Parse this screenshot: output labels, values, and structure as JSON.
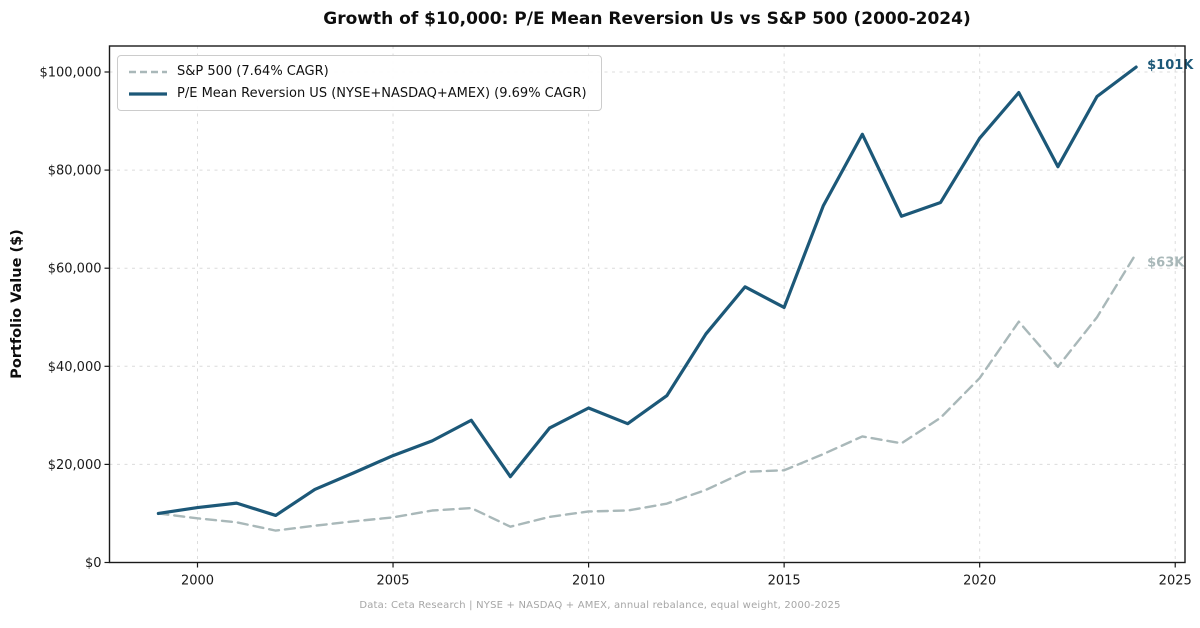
{
  "header": {
    "title": "Growth of $10,000: P/E Mean Reversion Us vs S&P 500 (2000-2024)"
  },
  "y_axis_label": "Portfolio Value ($)",
  "footer": {
    "caption": "Data: Ceta Research | NYSE + NASDAQ + AMEX, annual rebalance, equal weight, 2000-2025"
  },
  "legend": {
    "position": "upper-left",
    "items": [
      {
        "label": "S&P 500 (7.64% CAGR)",
        "series": "sp500",
        "style": "dashed"
      },
      {
        "label": "P/E Mean Reversion US (NYSE+NASDAQ+AMEX) (9.69% CAGR)",
        "series": "strategy",
        "style": "solid"
      }
    ]
  },
  "colors": {
    "strategy": "#1c5878",
    "sp500": "#a9b8b9",
    "grid": "#dcdcdc",
    "spine": "#1a1a1a",
    "tick_text": "#1a1a1a",
    "footer_text": "#a6a6a6"
  },
  "chart_data": {
    "type": "line",
    "title": "Growth of $10,000: P/E Mean Reversion Us vs S&P 500 (2000-2024)",
    "xlabel": "",
    "ylabel": "Portfolio Value ($)",
    "grid": true,
    "legend_position": "upper-left",
    "x": [
      1999,
      2000,
      2001,
      2002,
      2003,
      2004,
      2005,
      2006,
      2007,
      2008,
      2009,
      2010,
      2011,
      2012,
      2013,
      2014,
      2015,
      2016,
      2017,
      2018,
      2019,
      2020,
      2021,
      2022,
      2023,
      2024
    ],
    "series": [
      {
        "name": "S&P 500 (7.64% CAGR)",
        "style": "dashed",
        "color_key": "sp500",
        "end_label": "$63K",
        "values_usd_thousands": [
          10.0,
          9.0,
          8.2,
          6.5,
          7.5,
          8.4,
          9.2,
          10.6,
          11.1,
          7.3,
          9.3,
          10.4,
          10.6,
          12.0,
          14.8,
          18.5,
          18.8,
          22.1,
          25.7,
          24.3,
          29.5,
          37.6,
          49.1,
          39.9,
          50.0,
          63.0
        ]
      },
      {
        "name": "P/E Mean Reversion US (NYSE+NASDAQ+AMEX) (9.69% CAGR)",
        "style": "solid",
        "color_key": "strategy",
        "end_label": "$101K",
        "values_usd_thousands": [
          10.0,
          11.2,
          12.1,
          9.6,
          14.9,
          18.3,
          21.8,
          24.8,
          29.0,
          17.5,
          27.4,
          31.5,
          28.3,
          34.0,
          46.6,
          56.2,
          52.0,
          72.7,
          87.3,
          70.6,
          73.4,
          86.5,
          95.8,
          80.7,
          95.0,
          101.0
        ]
      }
    ],
    "x_ticks": [
      2000,
      2005,
      2010,
      2015,
      2020,
      2025
    ],
    "y_ticks": [
      {
        "value": 0,
        "label": "$0"
      },
      {
        "value": 20,
        "label": "$20,000"
      },
      {
        "value": 40,
        "label": "$40,000"
      },
      {
        "value": 60,
        "label": "$60,000"
      },
      {
        "value": 80,
        "label": "$80,000"
      },
      {
        "value": 100,
        "label": "$100,000"
      }
    ],
    "xlim": [
      1997.75,
      2025.25
    ],
    "ylim_usd_thousands": [
      0,
      105.3
    ]
  }
}
